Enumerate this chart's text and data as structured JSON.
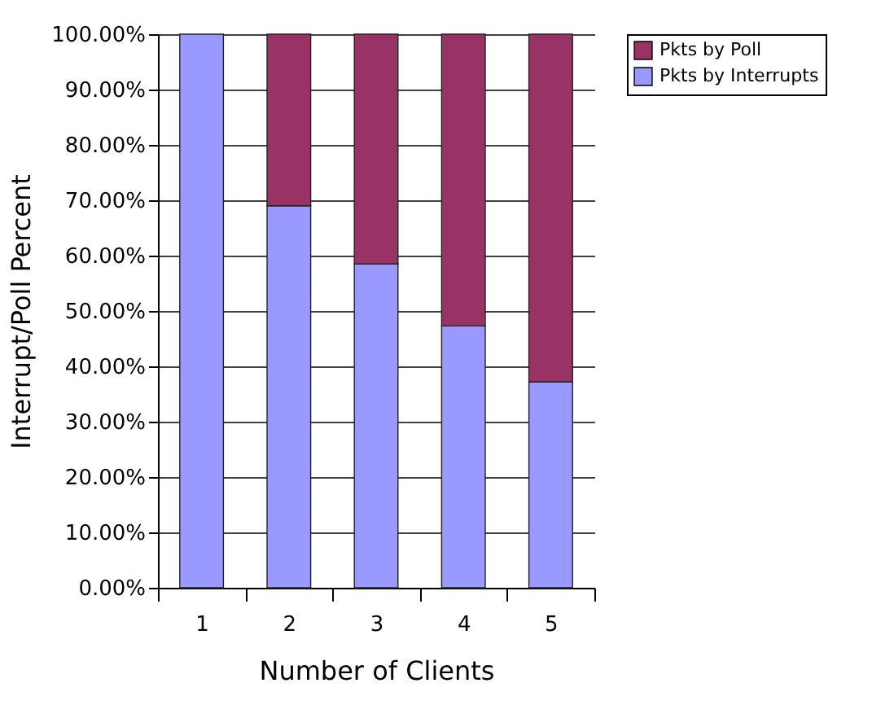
{
  "chart_data": {
    "type": "bar",
    "stacked": true,
    "xlabel": "Number of Clients",
    "ylabel": "Interrupt/Poll Percent",
    "categories": [
      "1",
      "2",
      "3",
      "4",
      "5"
    ],
    "series": [
      {
        "name": "Pkts by Interrupts",
        "color": "#9999ff",
        "values": [
          100,
          69.0,
          58.5,
          47.3,
          37.2
        ]
      },
      {
        "name": "Pkts by Poll",
        "color": "#993366",
        "values": [
          null,
          31.0,
          41.5,
          52.7,
          62.8
        ]
      }
    ],
    "ylim": [
      0,
      100
    ],
    "yticks": [
      {
        "value": 0,
        "label": "0.00%"
      },
      {
        "value": 10,
        "label": "10.00%"
      },
      {
        "value": 20,
        "label": "20.00%"
      },
      {
        "value": 30,
        "label": "30.00%"
      },
      {
        "value": 40,
        "label": "40.00%"
      },
      {
        "value": 50,
        "label": "50.00%"
      },
      {
        "value": 60,
        "label": "60.00%"
      },
      {
        "value": 70,
        "label": "70.00%"
      },
      {
        "value": 80,
        "label": "80.00%"
      },
      {
        "value": 90,
        "label": "90.00%"
      },
      {
        "value": 100,
        "label": "100.00%"
      }
    ],
    "grid": "y",
    "legend": "right"
  }
}
